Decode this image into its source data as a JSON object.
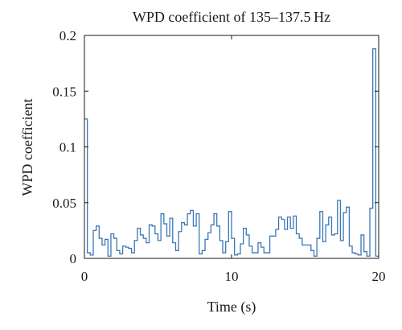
{
  "chart_data": {
    "type": "line",
    "step": true,
    "title": "WPD coefficient of 135–137.5 Hz",
    "xlabel": "Time (s)",
    "ylabel": "WPD coefficient",
    "xlim": [
      0,
      20
    ],
    "ylim": [
      0,
      0.2
    ],
    "x_ticks": [
      0,
      10,
      20
    ],
    "x_tick_labels": [
      "0",
      "10",
      "20"
    ],
    "y_ticks": [
      0,
      0.05,
      0.1,
      0.15,
      0.2
    ],
    "y_tick_labels": [
      "0",
      "0.05",
      "0.1",
      "0.15",
      "0.2"
    ],
    "grid": false,
    "series": [
      {
        "color": "#3a77b7",
        "x": [
          0,
          0.2,
          0.4,
          0.6,
          0.8,
          1.0,
          1.2,
          1.4,
          1.6,
          1.8,
          2.0,
          2.2,
          2.4,
          2.6,
          2.8,
          3.0,
          3.2,
          3.4,
          3.6,
          3.8,
          4.0,
          4.2,
          4.4,
          4.6,
          4.8,
          5.0,
          5.2,
          5.4,
          5.6,
          5.8,
          6.0,
          6.2,
          6.4,
          6.6,
          6.8,
          7.0,
          7.2,
          7.4,
          7.6,
          7.8,
          8.0,
          8.2,
          8.4,
          8.6,
          8.8,
          9.0,
          9.2,
          9.4,
          9.6,
          9.8,
          10.0,
          10.2,
          10.4,
          10.6,
          10.8,
          11.0,
          11.2,
          11.4,
          11.6,
          11.8,
          12.0,
          12.2,
          12.4,
          12.6,
          12.8,
          13.0,
          13.2,
          13.4,
          13.6,
          13.8,
          14.0,
          14.2,
          14.4,
          14.6,
          14.8,
          15.0,
          15.2,
          15.4,
          15.6,
          15.8,
          16.0,
          16.2,
          16.4,
          16.6,
          16.8,
          17.0,
          17.2,
          17.4,
          17.6,
          17.8,
          18.0,
          18.2,
          18.4,
          18.6,
          18.8,
          19.0,
          19.2,
          19.4,
          19.6,
          19.8,
          20.0
        ],
        "values": [
          0.125,
          0.005,
          0.003,
          0.025,
          0.029,
          0.018,
          0.012,
          0.017,
          0.002,
          0.022,
          0.018,
          0.007,
          0.004,
          0.011,
          0.01,
          0.009,
          0.005,
          0.016,
          0.027,
          0.021,
          0.018,
          0.014,
          0.03,
          0.029,
          0.022,
          0.016,
          0.04,
          0.031,
          0.02,
          0.036,
          0.014,
          0.007,
          0.024,
          0.032,
          0.03,
          0.04,
          0.043,
          0.029,
          0.04,
          0.004,
          0.007,
          0.017,
          0.023,
          0.03,
          0.04,
          0.029,
          0.016,
          0.005,
          0.015,
          0.042,
          0.018,
          0.003,
          0.004,
          0.013,
          0.027,
          0.021,
          0.011,
          0.005,
          0.005,
          0.014,
          0.01,
          0.005,
          0.005,
          0.02,
          0.02,
          0.026,
          0.037,
          0.035,
          0.026,
          0.037,
          0.027,
          0.038,
          0.022,
          0.018,
          0.012,
          0.012,
          0.012,
          0.007,
          0.002,
          0.018,
          0.042,
          0.015,
          0.03,
          0.037,
          0.021,
          0.022,
          0.052,
          0.016,
          0.041,
          0.046,
          0.011,
          0.005,
          0.004,
          0.003,
          0.021,
          0.006,
          0.002,
          0.045,
          0.188,
          0.002,
          0.002
        ]
      }
    ]
  }
}
